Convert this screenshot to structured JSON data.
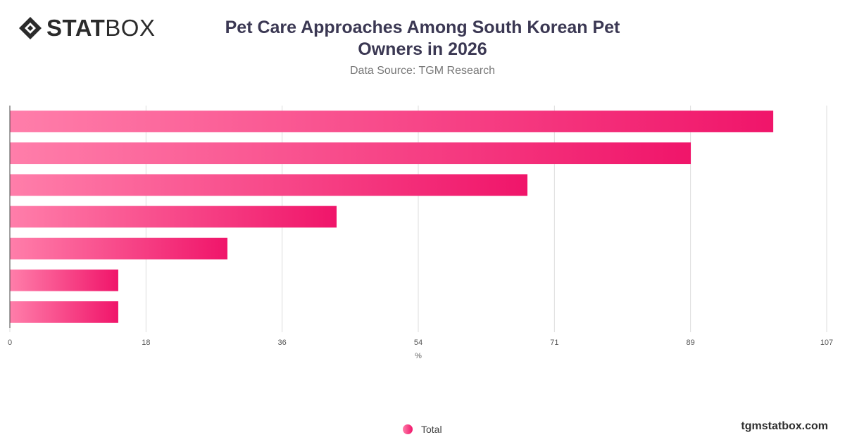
{
  "header": {
    "logo_bold": "STAT",
    "logo_light": "BOX",
    "title_line1": "Pet Care Approaches Among South Korean Pet",
    "title_line2": "Owners in 2026",
    "subtitle": "Data Source: TGM Research"
  },
  "colors": {
    "bar_start": "#ff7eaa",
    "bar_end": "#f0156a",
    "grid": "#dddddd",
    "axis": "#444444"
  },
  "legend": {
    "label": "Total"
  },
  "footer": {
    "brand": "tgmstatbox.com"
  },
  "chart_data": {
    "type": "bar",
    "orientation": "horizontal",
    "categories": [
      "",
      "",
      "",
      "",
      "",
      "",
      ""
    ],
    "series": [
      {
        "name": "Total",
        "values": [
          100,
          89.2,
          67.8,
          42.8,
          28.5,
          14.2,
          14.2
        ]
      }
    ],
    "xlabel": "%",
    "ylabel": "",
    "xlim": [
      0,
      107
    ],
    "xticks": [
      "0",
      "18",
      "36",
      "54",
      "71",
      "89",
      "107"
    ],
    "grid": true,
    "legend_position": "bottom"
  }
}
